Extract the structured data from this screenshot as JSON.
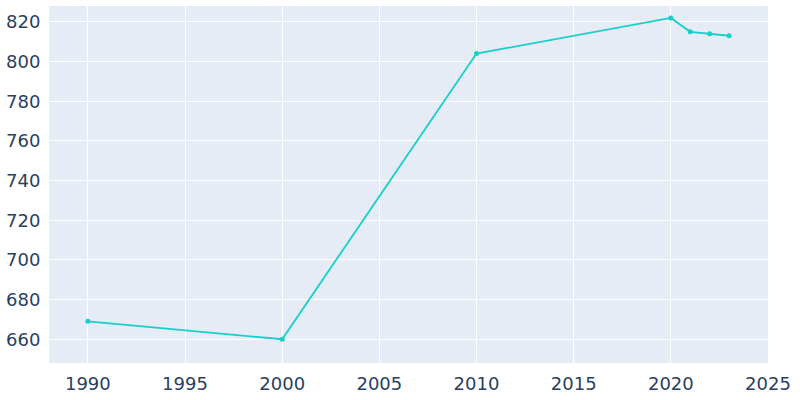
{
  "chart_data": {
    "type": "line",
    "x": [
      1990,
      2000,
      2010,
      2020,
      2021,
      2022,
      2023
    ],
    "values": [
      669,
      660,
      804,
      822,
      815,
      814,
      813
    ],
    "color": "#17cfc9",
    "marker": "circle",
    "line_style": "solid",
    "xlim": [
      1988,
      2025
    ],
    "xticks": [
      1990,
      1995,
      2000,
      2005,
      2010,
      2015,
      2020,
      2025
    ],
    "ylim": [
      648,
      828
    ],
    "yticks": [
      660,
      680,
      700,
      720,
      740,
      760,
      780,
      800,
      820
    ],
    "grid": true
  }
}
